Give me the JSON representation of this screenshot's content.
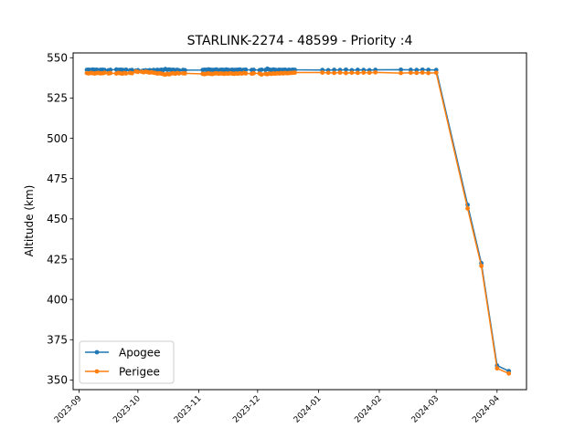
{
  "chart_data": {
    "type": "line",
    "title": "STARLINK-2274 - 48599 - Priority :4",
    "xlabel": "",
    "ylabel": "Altitude (km)",
    "x_type": "date",
    "xlim": [
      "2023-08-29",
      "2024-04-16"
    ],
    "ylim": [
      344,
      553
    ],
    "x_ticks": [
      "2023-09",
      "2023-10",
      "2023-11",
      "2023-12",
      "2024-01",
      "2024-02",
      "2024-03",
      "2024-04"
    ],
    "y_ticks": [
      350,
      375,
      400,
      425,
      450,
      475,
      500,
      525,
      550
    ],
    "legend_position": "lower-left",
    "grid": false,
    "series": [
      {
        "name": "Apogee",
        "color": "#1f77b4",
        "marker": "dot",
        "x": [
          "2023-09-05",
          "2023-09-06",
          "2023-09-07",
          "2023-09-08",
          "2023-09-09",
          "2023-09-10",
          "2023-09-11",
          "2023-09-12",
          "2023-09-13",
          "2023-09-14",
          "2023-09-16",
          "2023-09-17",
          "2023-09-20",
          "2023-09-21",
          "2023-09-22",
          "2023-09-23",
          "2023-09-24",
          "2023-09-25",
          "2023-09-27",
          "2023-09-28",
          "2023-09-30",
          "2023-10-01",
          "2023-10-03",
          "2023-10-04",
          "2023-10-05",
          "2023-10-06",
          "2023-10-07",
          "2023-10-08",
          "2023-10-09",
          "2023-10-10",
          "2023-10-11",
          "2023-10-12",
          "2023-10-13",
          "2023-10-14",
          "2023-10-15",
          "2023-10-16",
          "2023-10-17",
          "2023-10-18",
          "2023-10-19",
          "2023-10-20",
          "2023-10-21",
          "2023-10-22",
          "2023-10-24",
          "2023-10-25",
          "2023-11-03",
          "2023-11-04",
          "2023-11-05",
          "2023-11-06",
          "2023-11-07",
          "2023-11-08",
          "2023-11-09",
          "2023-11-10",
          "2023-11-11",
          "2023-11-12",
          "2023-11-13",
          "2023-11-14",
          "2023-11-15",
          "2023-11-16",
          "2023-11-17",
          "2023-11-18",
          "2023-11-19",
          "2023-11-20",
          "2023-11-21",
          "2023-11-22",
          "2023-11-23",
          "2023-11-24",
          "2023-11-25",
          "2023-11-28",
          "2023-11-29",
          "2023-12-02",
          "2023-12-03",
          "2023-12-05",
          "2023-12-06",
          "2023-12-07",
          "2023-12-08",
          "2023-12-09",
          "2023-12-10",
          "2023-12-11",
          "2023-12-12",
          "2023-12-13",
          "2023-12-14",
          "2023-12-15",
          "2023-12-16",
          "2023-12-17",
          "2023-12-18",
          "2023-12-19",
          "2023-12-20",
          "2024-01-03",
          "2024-01-06",
          "2024-01-09",
          "2024-01-12",
          "2024-01-15",
          "2024-01-18",
          "2024-01-21",
          "2024-01-24",
          "2024-01-27",
          "2024-01-30",
          "2024-02-12",
          "2024-02-17",
          "2024-02-20",
          "2024-02-23",
          "2024-02-26",
          "2024-03-01",
          "2024-03-17",
          "2024-03-24",
          "2024-04-01",
          "2024-04-07"
        ],
        "y": [
          542.5,
          542.6,
          542.4,
          542.7,
          542.5,
          542.6,
          542.3,
          542.5,
          542.6,
          542.4,
          542.2,
          542.5,
          542.7,
          542.4,
          542.6,
          542.5,
          542.3,
          542.6,
          542.2,
          542.4,
          542.0,
          542.3,
          541.8,
          542.1,
          542.2,
          542.0,
          542.3,
          542.1,
          542.4,
          542.2,
          542.5,
          542.3,
          542.6,
          542.4,
          543.0,
          542.5,
          542.7,
          542.4,
          542.6,
          542.3,
          542.5,
          542.2,
          542.4,
          542.3,
          542.4,
          542.6,
          542.5,
          542.8,
          542.6,
          542.4,
          542.5,
          542.7,
          542.3,
          542.5,
          542.6,
          542.4,
          542.7,
          542.5,
          542.3,
          542.6,
          542.4,
          542.5,
          542.6,
          542.7,
          542.3,
          542.5,
          542.6,
          542.4,
          542.5,
          542.3,
          542.6,
          542.4,
          543.2,
          542.6,
          542.4,
          542.7,
          542.5,
          542.3,
          542.6,
          542.4,
          542.5,
          542.6,
          542.3,
          542.5,
          542.4,
          542.6,
          542.5,
          542.4,
          542.3,
          542.5,
          542.4,
          542.6,
          542.3,
          542.5,
          542.4,
          542.3,
          542.5,
          542.6,
          542.5,
          542.4,
          542.6,
          542.5,
          542.4,
          458.7,
          422.5,
          359.0,
          355.5
        ]
      },
      {
        "name": "Perigee",
        "color": "#ff7f0e",
        "marker": "dot",
        "x": [
          "2023-09-05",
          "2023-09-06",
          "2023-09-07",
          "2023-09-08",
          "2023-09-09",
          "2023-09-10",
          "2023-09-11",
          "2023-09-12",
          "2023-09-13",
          "2023-09-14",
          "2023-09-16",
          "2023-09-17",
          "2023-09-20",
          "2023-09-21",
          "2023-09-22",
          "2023-09-23",
          "2023-09-24",
          "2023-09-25",
          "2023-09-27",
          "2023-09-28",
          "2023-09-30",
          "2023-10-01",
          "2023-10-03",
          "2023-10-04",
          "2023-10-05",
          "2023-10-06",
          "2023-10-07",
          "2023-10-08",
          "2023-10-09",
          "2023-10-10",
          "2023-10-11",
          "2023-10-12",
          "2023-10-13",
          "2023-10-14",
          "2023-10-15",
          "2023-10-16",
          "2023-10-17",
          "2023-10-18",
          "2023-10-19",
          "2023-10-20",
          "2023-10-21",
          "2023-10-22",
          "2023-10-24",
          "2023-10-25",
          "2023-11-03",
          "2023-11-04",
          "2023-11-05",
          "2023-11-06",
          "2023-11-07",
          "2023-11-08",
          "2023-11-09",
          "2023-11-10",
          "2023-11-11",
          "2023-11-12",
          "2023-11-13",
          "2023-11-14",
          "2023-11-15",
          "2023-11-16",
          "2023-11-17",
          "2023-11-18",
          "2023-11-19",
          "2023-11-20",
          "2023-11-21",
          "2023-11-22",
          "2023-11-23",
          "2023-11-24",
          "2023-11-25",
          "2023-11-28",
          "2023-11-29",
          "2023-12-02",
          "2023-12-03",
          "2023-12-05",
          "2023-12-06",
          "2023-12-07",
          "2023-12-08",
          "2023-12-09",
          "2023-12-10",
          "2023-12-11",
          "2023-12-12",
          "2023-12-13",
          "2023-12-14",
          "2023-12-15",
          "2023-12-16",
          "2023-12-17",
          "2023-12-18",
          "2023-12-19",
          "2023-12-20",
          "2024-01-03",
          "2024-01-06",
          "2024-01-09",
          "2024-01-12",
          "2024-01-15",
          "2024-01-18",
          "2024-01-21",
          "2024-01-24",
          "2024-01-27",
          "2024-01-30",
          "2024-02-12",
          "2024-02-17",
          "2024-02-20",
          "2024-02-23",
          "2024-02-26",
          "2024-03-01",
          "2024-03-17",
          "2024-03-24",
          "2024-04-01",
          "2024-04-07"
        ],
        "y": [
          540.5,
          540.3,
          540.6,
          540.4,
          540.2,
          540.5,
          540.6,
          540.3,
          540.4,
          540.7,
          540.3,
          540.5,
          540.2,
          540.6,
          540.4,
          540.1,
          540.5,
          540.3,
          540.6,
          540.4,
          541.5,
          541.2,
          541.3,
          541.0,
          541.4,
          541.1,
          540.8,
          541.0,
          540.7,
          540.5,
          540.2,
          540.4,
          540.1,
          539.8,
          539.5,
          540.0,
          539.7,
          540.2,
          540.4,
          540.1,
          540.5,
          540.3,
          540.4,
          540.3,
          540.0,
          539.8,
          540.1,
          540.3,
          540.0,
          539.9,
          540.2,
          540.4,
          540.1,
          540.3,
          540.2,
          540.0,
          540.3,
          540.1,
          540.4,
          540.2,
          540.0,
          540.3,
          540.1,
          540.4,
          540.2,
          540.5,
          540.3,
          540.1,
          540.4,
          540.2,
          539.6,
          540.0,
          539.8,
          540.2,
          540.0,
          540.3,
          540.1,
          540.4,
          540.2,
          540.5,
          540.3,
          540.6,
          540.4,
          540.5,
          540.6,
          540.7,
          540.8,
          540.8,
          540.7,
          540.6,
          540.8,
          540.5,
          540.7,
          540.6,
          540.8,
          540.7,
          540.9,
          540.5,
          540.7,
          540.6,
          540.8,
          540.5,
          540.7,
          456.5,
          420.8,
          357.2,
          354.0
        ]
      }
    ]
  }
}
